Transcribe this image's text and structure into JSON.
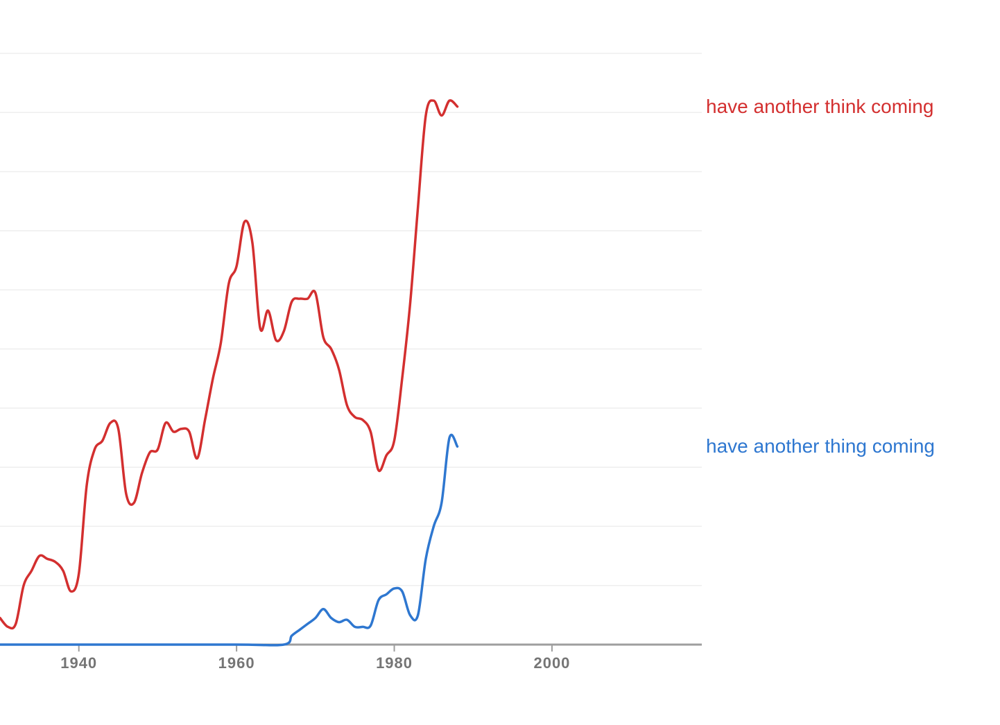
{
  "chart_data": {
    "type": "line",
    "x_axis": {
      "xlim": [
        1930,
        2019
      ],
      "ticks": [
        1940,
        1960,
        1980,
        2000
      ]
    },
    "y_axis": {
      "ylim": [
        0,
        10
      ],
      "gridlines": [
        1,
        2,
        3,
        4,
        5,
        6,
        7,
        8,
        9,
        10
      ],
      "tick_labels_visible": false
    },
    "grid": true,
    "legend": "inline labels at line ends",
    "series": [
      {
        "name": "have another think coming",
        "color": "#d32f2f",
        "points": [
          [
            1930,
            0.45
          ],
          [
            1931,
            0.3
          ],
          [
            1932,
            0.35
          ],
          [
            1933,
            1.0
          ],
          [
            1934,
            1.25
          ],
          [
            1935,
            1.5
          ],
          [
            1936,
            1.45
          ],
          [
            1937,
            1.4
          ],
          [
            1938,
            1.25
          ],
          [
            1939,
            0.9
          ],
          [
            1940,
            1.2
          ],
          [
            1941,
            2.7
          ],
          [
            1942,
            3.3
          ],
          [
            1943,
            3.45
          ],
          [
            1944,
            3.75
          ],
          [
            1945,
            3.65
          ],
          [
            1946,
            2.55
          ],
          [
            1947,
            2.4
          ],
          [
            1948,
            2.9
          ],
          [
            1949,
            3.25
          ],
          [
            1950,
            3.3
          ],
          [
            1951,
            3.75
          ],
          [
            1952,
            3.6
          ],
          [
            1953,
            3.65
          ],
          [
            1954,
            3.6
          ],
          [
            1955,
            3.15
          ],
          [
            1956,
            3.8
          ],
          [
            1957,
            4.5
          ],
          [
            1958,
            5.1
          ],
          [
            1959,
            6.1
          ],
          [
            1960,
            6.4
          ],
          [
            1961,
            7.15
          ],
          [
            1962,
            6.8
          ],
          [
            1963,
            5.35
          ],
          [
            1964,
            5.65
          ],
          [
            1965,
            5.15
          ],
          [
            1966,
            5.3
          ],
          [
            1967,
            5.8
          ],
          [
            1968,
            5.85
          ],
          [
            1969,
            5.85
          ],
          [
            1970,
            5.95
          ],
          [
            1971,
            5.2
          ],
          [
            1972,
            5.0
          ],
          [
            1973,
            4.65
          ],
          [
            1974,
            4.05
          ],
          [
            1975,
            3.85
          ],
          [
            1976,
            3.8
          ],
          [
            1977,
            3.6
          ],
          [
            1978,
            2.95
          ],
          [
            1979,
            3.2
          ],
          [
            1980,
            3.45
          ],
          [
            1981,
            4.5
          ],
          [
            1982,
            5.75
          ],
          [
            1983,
            7.4
          ],
          [
            1984,
            8.95
          ],
          [
            1985,
            9.2
          ],
          [
            1986,
            8.95
          ],
          [
            1987,
            9.2
          ],
          [
            1988,
            9.1
          ]
        ]
      },
      {
        "name": "have another thing coming",
        "color": "#2e77d0",
        "points": [
          [
            1930,
            0.0
          ],
          [
            1945,
            0.0
          ],
          [
            1960,
            0.0
          ],
          [
            1966,
            0.0
          ],
          [
            1967,
            0.15
          ],
          [
            1968,
            0.25
          ],
          [
            1969,
            0.35
          ],
          [
            1970,
            0.45
          ],
          [
            1971,
            0.6
          ],
          [
            1972,
            0.45
          ],
          [
            1973,
            0.38
          ],
          [
            1974,
            0.42
          ],
          [
            1975,
            0.3
          ],
          [
            1976,
            0.3
          ],
          [
            1977,
            0.32
          ],
          [
            1978,
            0.75
          ],
          [
            1979,
            0.85
          ],
          [
            1980,
            0.95
          ],
          [
            1981,
            0.9
          ],
          [
            1982,
            0.5
          ],
          [
            1983,
            0.5
          ],
          [
            1984,
            1.45
          ],
          [
            1985,
            2.0
          ],
          [
            1986,
            2.4
          ],
          [
            1987,
            3.5
          ],
          [
            1988,
            3.35
          ]
        ]
      }
    ]
  }
}
